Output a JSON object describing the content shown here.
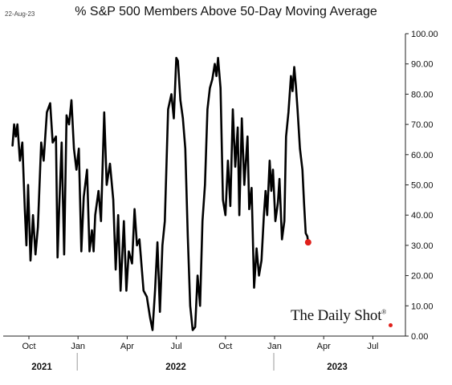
{
  "header": {
    "date_stamp": "22-Aug-23",
    "title": "% S&P 500 Members Above 50-Day Moving Average"
  },
  "watermark": {
    "text": "The Daily Shot",
    "mark": "®"
  },
  "chart_data": {
    "type": "line",
    "title": "% S&P 500 Members Above 50-Day Moving Average",
    "xlabel": "",
    "ylabel": "",
    "ylim": [
      0,
      100
    ],
    "y_ticks": [
      "0.00",
      "10.00",
      "20.00",
      "30.00",
      "40.00",
      "50.00",
      "60.00",
      "70.00",
      "80.00",
      "90.00",
      "100.00"
    ],
    "x_ticks": [
      {
        "label": "Oct",
        "month": 9
      },
      {
        "label": "Jan",
        "month": 12
      },
      {
        "label": "Apr",
        "month": 15
      },
      {
        "label": "Jul",
        "month": 18
      },
      {
        "label": "Oct",
        "month": 21
      },
      {
        "label": "Jan",
        "month": 24
      },
      {
        "label": "Apr",
        "month": 27
      },
      {
        "label": "Jul",
        "month": 30
      }
    ],
    "year_labels": [
      "2021",
      "2022",
      "2023"
    ],
    "grid": false,
    "series": [
      {
        "color": "#000000",
        "end_marker_color": "#e0201b",
        "points": [
          [
            8.0,
            63
          ],
          [
            8.1,
            70
          ],
          [
            8.2,
            66
          ],
          [
            8.3,
            70
          ],
          [
            8.45,
            58
          ],
          [
            8.6,
            64
          ],
          [
            8.75,
            42
          ],
          [
            8.85,
            30
          ],
          [
            8.95,
            50
          ],
          [
            9.1,
            25
          ],
          [
            9.25,
            40
          ],
          [
            9.4,
            27
          ],
          [
            9.55,
            36
          ],
          [
            9.75,
            64
          ],
          [
            9.9,
            58
          ],
          [
            10.1,
            74
          ],
          [
            10.3,
            77
          ],
          [
            10.45,
            64
          ],
          [
            10.65,
            66
          ],
          [
            10.75,
            26
          ],
          [
            10.85,
            42
          ],
          [
            11.0,
            64
          ],
          [
            11.15,
            27
          ],
          [
            11.3,
            73
          ],
          [
            11.45,
            70
          ],
          [
            11.6,
            78
          ],
          [
            11.75,
            62
          ],
          [
            11.9,
            55
          ],
          [
            12.05,
            62
          ],
          [
            12.2,
            28
          ],
          [
            12.35,
            46
          ],
          [
            12.55,
            55
          ],
          [
            12.7,
            28
          ],
          [
            12.85,
            35
          ],
          [
            12.95,
            28
          ],
          [
            13.05,
            40
          ],
          [
            13.25,
            48
          ],
          [
            13.4,
            38
          ],
          [
            13.6,
            74
          ],
          [
            13.75,
            50
          ],
          [
            13.95,
            57
          ],
          [
            14.15,
            45
          ],
          [
            14.3,
            22
          ],
          [
            14.45,
            40
          ],
          [
            14.6,
            15
          ],
          [
            14.8,
            38
          ],
          [
            14.95,
            15
          ],
          [
            15.1,
            28
          ],
          [
            15.3,
            24
          ],
          [
            15.45,
            42
          ],
          [
            15.6,
            30
          ],
          [
            15.75,
            32
          ],
          [
            16.0,
            15
          ],
          [
            16.2,
            13
          ],
          [
            16.4,
            6
          ],
          [
            16.55,
            2
          ],
          [
            16.7,
            15
          ],
          [
            16.85,
            31
          ],
          [
            17.0,
            8
          ],
          [
            17.15,
            30
          ],
          [
            17.3,
            38
          ],
          [
            17.5,
            75
          ],
          [
            17.7,
            80
          ],
          [
            17.85,
            72
          ],
          [
            18.0,
            92
          ],
          [
            18.1,
            91
          ],
          [
            18.25,
            78
          ],
          [
            18.4,
            72
          ],
          [
            18.55,
            62
          ],
          [
            18.7,
            33
          ],
          [
            18.85,
            10
          ],
          [
            19.0,
            2
          ],
          [
            19.15,
            3
          ],
          [
            19.3,
            20
          ],
          [
            19.45,
            10
          ],
          [
            19.6,
            38
          ],
          [
            19.75,
            50
          ],
          [
            19.9,
            75
          ],
          [
            20.05,
            82
          ],
          [
            20.2,
            85
          ],
          [
            20.35,
            90
          ],
          [
            20.45,
            86
          ],
          [
            20.55,
            92
          ],
          [
            20.7,
            82
          ],
          [
            20.85,
            45
          ],
          [
            21.0,
            40
          ],
          [
            21.15,
            58
          ],
          [
            21.3,
            43
          ],
          [
            21.45,
            75
          ],
          [
            21.6,
            56
          ],
          [
            21.75,
            69
          ],
          [
            21.85,
            40
          ],
          [
            22.0,
            72
          ],
          [
            22.15,
            50
          ],
          [
            22.35,
            66
          ],
          [
            22.45,
            42
          ],
          [
            22.6,
            49
          ],
          [
            22.75,
            16
          ],
          [
            22.9,
            29
          ],
          [
            23.05,
            20
          ],
          [
            23.2,
            25
          ],
          [
            23.35,
            40
          ],
          [
            23.45,
            48
          ],
          [
            23.55,
            40
          ],
          [
            23.7,
            58
          ],
          [
            23.8,
            48
          ],
          [
            23.9,
            55
          ],
          [
            24.05,
            38
          ],
          [
            24.2,
            44
          ],
          [
            24.3,
            52
          ],
          [
            24.45,
            32
          ],
          [
            24.6,
            38
          ],
          [
            24.7,
            66
          ],
          [
            24.85,
            74
          ],
          [
            25.0,
            86
          ],
          [
            25.1,
            81
          ],
          [
            25.2,
            89
          ],
          [
            25.3,
            83
          ],
          [
            25.4,
            75
          ],
          [
            25.55,
            62
          ],
          [
            25.7,
            55
          ],
          [
            25.8,
            44
          ],
          [
            25.9,
            34
          ],
          [
            26.0,
            33
          ],
          [
            26.05,
            31
          ]
        ]
      }
    ]
  }
}
